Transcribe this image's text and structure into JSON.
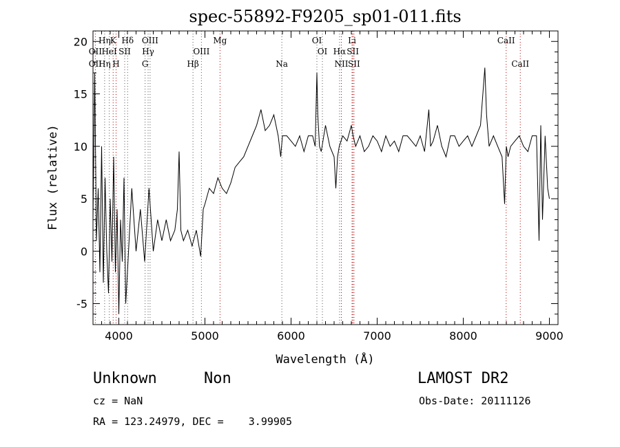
{
  "chart_data": {
    "type": "line",
    "title": "spec-55892-F9205_sp01-011.fits",
    "xlabel": "Wavelength (Å)",
    "ylabel": "Flux (relative)",
    "xlim": [
      3700,
      9100
    ],
    "ylim": [
      -7,
      21
    ],
    "xticks": [
      4000,
      5000,
      6000,
      7000,
      8000,
      9000
    ],
    "yticks": [
      -5,
      0,
      5,
      10,
      15,
      20
    ],
    "grid": false,
    "series": [
      {
        "color": "#000000",
        "x": [
          3700,
          3720,
          3740,
          3760,
          3780,
          3800,
          3820,
          3840,
          3860,
          3880,
          3900,
          3920,
          3940,
          3960,
          3980,
          4000,
          4020,
          4040,
          4060,
          4080,
          4100,
          4150,
          4200,
          4250,
          4300,
          4350,
          4400,
          4450,
          4500,
          4550,
          4600,
          4650,
          4680,
          4700,
          4720,
          4750,
          4800,
          4850,
          4900,
          4950,
          4980,
          5000,
          5050,
          5100,
          5150,
          5200,
          5250,
          5300,
          5350,
          5400,
          5450,
          5500,
          5550,
          5600,
          5650,
          5700,
          5750,
          5800,
          5850,
          5880,
          5900,
          5950,
          6000,
          6050,
          6100,
          6150,
          6200,
          6250,
          6280,
          6300,
          6310,
          6330,
          6350,
          6400,
          6450,
          6500,
          6520,
          6540,
          6560,
          6600,
          6650,
          6700,
          6720,
          6750,
          6800,
          6850,
          6900,
          6950,
          7000,
          7050,
          7100,
          7150,
          7200,
          7250,
          7300,
          7350,
          7400,
          7450,
          7500,
          7550,
          7600,
          7620,
          7650,
          7700,
          7750,
          7800,
          7850,
          7900,
          7950,
          8000,
          8050,
          8100,
          8150,
          8200,
          8250,
          8270,
          8280,
          8300,
          8350,
          8400,
          8450,
          8480,
          8500,
          8520,
          8550,
          8600,
          8650,
          8700,
          8750,
          8800,
          8850,
          8880,
          8900,
          8920,
          8950,
          8980,
          9000
        ],
        "y": [
          3,
          17,
          1,
          6,
          -2,
          10,
          -3,
          7,
          0,
          -4,
          5,
          -1,
          9,
          -2,
          4,
          -6,
          3,
          -1,
          7,
          -5,
          -2,
          6,
          0,
          4,
          -1,
          6,
          0,
          3,
          1,
          3,
          1,
          2,
          4,
          9.5,
          2,
          1,
          2,
          0.5,
          2,
          -0.5,
          4,
          4.5,
          6,
          5.5,
          7,
          6,
          5.5,
          6.5,
          8,
          8.5,
          9,
          10,
          11,
          12,
          13.5,
          11.5,
          12,
          13,
          11,
          9,
          11,
          11,
          10.5,
          10,
          11,
          9.5,
          11,
          11,
          10,
          17,
          13,
          10,
          9.5,
          12,
          10,
          9,
          6,
          9,
          10,
          11,
          10.5,
          12,
          11,
          10,
          11,
          9.5,
          10,
          11,
          10.5,
          9.5,
          11,
          10,
          10.5,
          9.5,
          11,
          11,
          10.5,
          10,
          11,
          9.5,
          13.5,
          10,
          10.5,
          12,
          10,
          9,
          11,
          11,
          10,
          10.5,
          11,
          10,
          11,
          12,
          17.5,
          13,
          12,
          10,
          11,
          10,
          9,
          4.5,
          10,
          9,
          10,
          10.5,
          11,
          10,
          9.5,
          11,
          11,
          1,
          12,
          3,
          11,
          6,
          5
        ]
      }
    ],
    "annotations": [
      {
        "text": "Hη",
        "x": 3835,
        "row": 1
      },
      {
        "text": "K",
        "x": 3934,
        "row": 1
      },
      {
        "text": "Hδ",
        "x": 4102,
        "row": 1
      },
      {
        "text": "OIII",
        "x": 4363,
        "row": 1
      },
      {
        "text": "Mg",
        "x": 5175,
        "row": 1
      },
      {
        "text": "OI",
        "x": 6300,
        "row": 1
      },
      {
        "text": "Li",
        "x": 6708,
        "row": 1
      },
      {
        "text": "CaII",
        "x": 8498,
        "row": 1
      },
      {
        "text": "OII",
        "x": 3727,
        "row": 2
      },
      {
        "text": "HeI",
        "x": 3889,
        "row": 2
      },
      {
        "text": "SII",
        "x": 4068,
        "row": 2
      },
      {
        "text": "Hγ",
        "x": 4340,
        "row": 2
      },
      {
        "text": "OIII",
        "x": 4959,
        "row": 2
      },
      {
        "text": "OI",
        "x": 6364,
        "row": 2
      },
      {
        "text": "Hα",
        "x": 6563,
        "row": 2
      },
      {
        "text": "SII",
        "x": 6717,
        "row": 2
      },
      {
        "text": "OII",
        "x": 3727,
        "row": 3
      },
      {
        "text": "Hη",
        "x": 3835,
        "row": 3
      },
      {
        "text": "H",
        "x": 3968,
        "row": 3
      },
      {
        "text": "G",
        "x": 4305,
        "row": 3
      },
      {
        "text": "Hβ",
        "x": 4861,
        "row": 3
      },
      {
        "text": "Na",
        "x": 5893,
        "row": 3
      },
      {
        "text": "NII",
        "x": 6584,
        "row": 3
      },
      {
        "text": "SII",
        "x": 6731,
        "row": 3
      },
      {
        "text": "CaII",
        "x": 8662,
        "row": 3
      }
    ],
    "line_markers": [
      {
        "x": 3727,
        "color": "#b00000"
      },
      {
        "x": 3835,
        "color": "#555555"
      },
      {
        "x": 3889,
        "color": "#555555"
      },
      {
        "x": 3934,
        "color": "#b00000"
      },
      {
        "x": 3968,
        "color": "#b00000"
      },
      {
        "x": 4068,
        "color": "#555555"
      },
      {
        "x": 4102,
        "color": "#555555"
      },
      {
        "x": 4305,
        "color": "#555555"
      },
      {
        "x": 4340,
        "color": "#555555"
      },
      {
        "x": 4363,
        "color": "#555555"
      },
      {
        "x": 4861,
        "color": "#555555"
      },
      {
        "x": 4959,
        "color": "#555555"
      },
      {
        "x": 5175,
        "color": "#b00000"
      },
      {
        "x": 5893,
        "color": "#555555"
      },
      {
        "x": 6300,
        "color": "#555555"
      },
      {
        "x": 6364,
        "color": "#555555"
      },
      {
        "x": 6563,
        "color": "#555555"
      },
      {
        "x": 6584,
        "color": "#b00000"
      },
      {
        "x": 6708,
        "color": "#b00000"
      },
      {
        "x": 6717,
        "color": "#b00000"
      },
      {
        "x": 6731,
        "color": "#b00000"
      },
      {
        "x": 8498,
        "color": "#b00000"
      },
      {
        "x": 8662,
        "color": "#b00000"
      }
    ]
  },
  "info": {
    "class": "Unknown",
    "subclass": "Non",
    "cz": "cz = NaN",
    "radec": "RA = 123.24979, DEC =    3.99905",
    "survey": "LAMOST DR2",
    "obsdate": "Obs-Date: 20111126"
  }
}
